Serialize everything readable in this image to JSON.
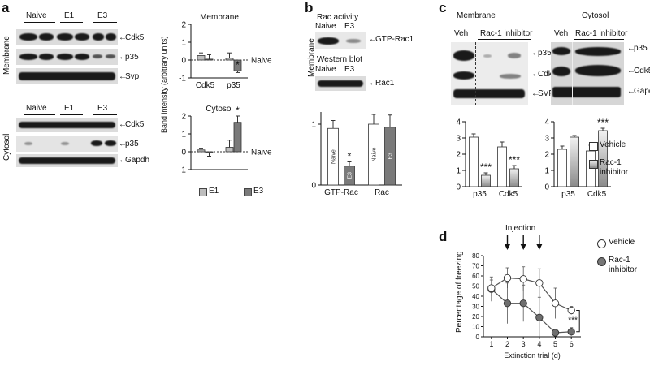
{
  "panels": {
    "a": {
      "letter": "a",
      "membrane_label": "Membrane",
      "cytosol_label": "Cytosol",
      "lanes": [
        "Naive",
        "E1",
        "E3"
      ],
      "membrane_bands": [
        "Cdk5",
        "p35",
        "Svp"
      ],
      "cytosol_bands": [
        "Cdk5",
        "p35",
        "Gapdh"
      ],
      "legend": [
        "E1",
        "E3"
      ]
    },
    "b": {
      "letter": "b",
      "membrane_label": "Membrane",
      "rac_activity": "Rac activity",
      "western_blot": "Western blot",
      "lanes": [
        "Naive",
        "E3"
      ],
      "bands": [
        "GTP-Rac1",
        "Rac1"
      ],
      "bar_labels": [
        "Naive",
        "E3"
      ]
    },
    "c": {
      "letter": "c",
      "membrane_label": "Membrane",
      "cytosol_label": "Cytosol",
      "veh": "Veh",
      "inhibitor": "Rac-1 inhibitor",
      "membrane_bands": [
        "p35",
        "Cdk5",
        "SVP"
      ],
      "cytosol_bands": [
        "p35",
        "Cdk5",
        "Gapdh"
      ],
      "legend": [
        "Vehicle",
        "Rac-1 inhibitor"
      ]
    },
    "d": {
      "letter": "d",
      "injection": "Injection",
      "legend": [
        "Vehicle",
        "Rac-1 inhibitor"
      ]
    }
  },
  "chart_data": [
    {
      "id": "a-membrane",
      "type": "bar",
      "title": "Membrane",
      "ylabel": "Band intensity (arbitrary units)",
      "categories": [
        "Cdk5",
        "p35"
      ],
      "series": [
        {
          "name": "E1",
          "values": [
            0.25,
            0.1
          ],
          "errors": [
            0.15,
            0.3
          ],
          "color": "#bdbdbd"
        },
        {
          "name": "E3",
          "values": [
            0.05,
            -0.6
          ],
          "errors": [
            0.25,
            0.1
          ],
          "color": "#7a7a7a"
        }
      ],
      "significance": [
        "",
        "*"
      ],
      "reference_line": {
        "value": 0,
        "label": "Naive"
      },
      "ylim": [
        -1,
        2
      ],
      "yticks": [
        -1,
        0,
        1,
        2
      ]
    },
    {
      "id": "a-cytosol",
      "type": "bar",
      "title": "Cytosol",
      "ylabel": "Band intensity (arbitrary units)",
      "categories": [
        "",
        ""
      ],
      "series": [
        {
          "name": "E1",
          "values": [
            0.1,
            0.25
          ],
          "errors": [
            0.1,
            0.4
          ],
          "color": "#bdbdbd"
        },
        {
          "name": "E3",
          "values": [
            -0.05,
            1.65
          ],
          "errors": [
            0.2,
            0.35
          ],
          "color": "#7a7a7a"
        }
      ],
      "significance": [
        "",
        "*"
      ],
      "reference_line": {
        "value": 0,
        "label": "Naive"
      },
      "ylim": [
        -1,
        2
      ],
      "yticks": [
        -1,
        0,
        1,
        2
      ]
    },
    {
      "id": "b",
      "type": "bar",
      "categories": [
        "GTP-Rac",
        "Rac"
      ],
      "series": [
        {
          "name": "Naive",
          "values": [
            0.93,
            1.0
          ],
          "errors": [
            0.13,
            0.16
          ],
          "color": "#ffffff"
        },
        {
          "name": "E3",
          "values": [
            0.31,
            0.95
          ],
          "errors": [
            0.07,
            0.2
          ],
          "color": "#7a7a7a"
        }
      ],
      "significance": [
        "*",
        ""
      ],
      "ylim": [
        0,
        1.2
      ],
      "yticks": [
        0,
        1
      ]
    },
    {
      "id": "c-membrane",
      "type": "bar",
      "categories": [
        "p35",
        "Cdk5"
      ],
      "series": [
        {
          "name": "Vehicle",
          "values": [
            3.05,
            2.45
          ],
          "errors": [
            0.2,
            0.3
          ],
          "color": "#ffffff"
        },
        {
          "name": "Rac-1 inhibitor",
          "values": [
            0.7,
            1.1
          ],
          "errors": [
            0.15,
            0.2
          ],
          "color": "#b0b0b0"
        }
      ],
      "significance": [
        "***",
        "***"
      ],
      "ylim": [
        0,
        4
      ],
      "yticks": [
        0,
        1,
        2,
        3,
        4
      ]
    },
    {
      "id": "c-cytosol",
      "type": "bar",
      "categories": [
        "p35",
        "Cdk5"
      ],
      "series": [
        {
          "name": "Vehicle",
          "values": [
            2.3,
            2.2
          ],
          "errors": [
            0.2,
            0.35
          ],
          "color": "#ffffff"
        },
        {
          "name": "Rac-1 inhibitor",
          "values": [
            3.05,
            3.45
          ],
          "errors": [
            0.1,
            0.15
          ],
          "color": "#b0b0b0"
        }
      ],
      "significance": [
        "",
        "***"
      ],
      "ylim": [
        0,
        4
      ],
      "yticks": [
        0,
        1,
        2,
        3,
        4
      ]
    },
    {
      "id": "d",
      "type": "line",
      "xlabel": "Extinction trial (d)",
      "ylabel": "Percentage of freezing",
      "x": [
        1,
        2,
        3,
        4,
        5,
        6
      ],
      "series": [
        {
          "name": "Vehicle",
          "values": [
            48,
            58,
            57,
            53,
            33,
            26
          ],
          "errors": [
            8,
            10,
            12,
            14,
            15,
            4
          ],
          "marker": "open"
        },
        {
          "name": "Rac-1 inhibitor",
          "values": [
            47,
            33,
            33,
            19,
            4,
            5
          ],
          "errors": [
            12,
            20,
            18,
            20,
            3,
            4
          ],
          "marker": "filled"
        }
      ],
      "injection_days": [
        2,
        3,
        4
      ],
      "significance": "***",
      "ylim": [
        0,
        80
      ],
      "yticks": [
        0,
        10,
        20,
        30,
        40,
        50,
        60,
        70,
        80
      ],
      "xlim": [
        0.5,
        6.6
      ]
    }
  ]
}
